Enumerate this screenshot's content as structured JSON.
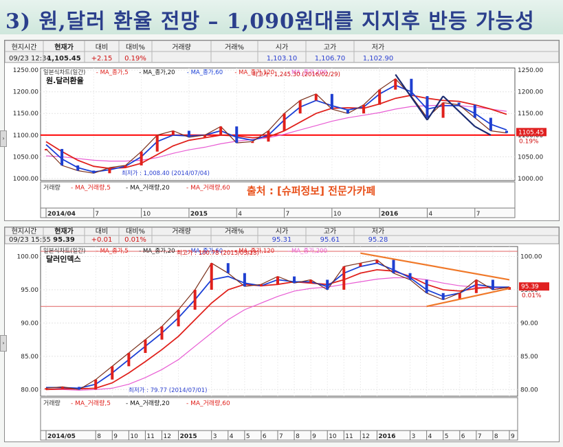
{
  "slide": {
    "title": "3) 원,달러 환율 전망 – 1,090원대를 지지후 반등 가능성"
  },
  "colors": {
    "price_up": "#e0201b",
    "price_down": "#1f3fd0",
    "ma5": "#101010",
    "ma20": "#1a3fd6",
    "ma60": "#e0201b",
    "ma120": "#e85bd3",
    "support_line": "#ff0000",
    "trend_line": "#f07828",
    "header_blue": "#2a3fd0",
    "header_red": "#d01010"
  },
  "chart_data": [
    {
      "type": "line",
      "title": "원.달러환율",
      "legend": [
        "일본식차트(일간)",
        "MA_종가,5",
        "MA_종가,20",
        "MA_종가,60",
        "MA_종가,120",
        "MA_종가,200"
      ],
      "header": {
        "labels": [
          "현지시간",
          "현재가",
          "대비",
          "대비%",
          "거래량",
          "거래%",
          "시가",
          "고가",
          "저가"
        ],
        "values": [
          "09/23 12:34",
          "1,105.45",
          "+2.15",
          "0.19%",
          "",
          "",
          "1,103.10",
          "1,106.70",
          "1,102.90"
        ]
      },
      "y_ticks": [
        "1250.00",
        "1200.00",
        "1150.00",
        "1100.00",
        "1050.00",
        "1000.00"
      ],
      "ylim": [
        995,
        1255
      ],
      "x_ticks": [
        "2014/04",
        "7",
        "10",
        "2015",
        "4",
        "7",
        "10",
        "2016",
        "4",
        "7"
      ],
      "x_dates": [
        "2014-04",
        "2014-07",
        "2014-10",
        "2015-01",
        "2015-04",
        "2015-07",
        "2015-10",
        "2016-01",
        "2016-04",
        "2016-07"
      ],
      "x": [
        "2014-04",
        "2014-05",
        "2014-06",
        "2014-07",
        "2014-08",
        "2014-09",
        "2014-10",
        "2014-11",
        "2014-12",
        "2015-01",
        "2015-02",
        "2015-03",
        "2015-04",
        "2015-05",
        "2015-06",
        "2015-07",
        "2015-08",
        "2015-09",
        "2015-10",
        "2015-11",
        "2015-12",
        "2016-01",
        "2016-02",
        "2016-03",
        "2016-04",
        "2016-05",
        "2016-06",
        "2016-07",
        "2016-08",
        "2016-09"
      ],
      "series": [
        {
          "name": "일본식차트(일간)",
          "values": [
            1068,
            1030,
            1018,
            1012,
            1025,
            1030,
            1062,
            1100,
            1110,
            1095,
            1100,
            1120,
            1082,
            1085,
            1110,
            1150,
            1180,
            1195,
            1160,
            1150,
            1170,
            1205,
            1230,
            1190,
            1140,
            1175,
            1170,
            1140,
            1110,
            1105
          ]
        },
        {
          "name": "MA_종가,20",
          "values": [
            1078,
            1045,
            1025,
            1015,
            1020,
            1028,
            1050,
            1085,
            1100,
            1098,
            1100,
            1110,
            1095,
            1088,
            1100,
            1135,
            1165,
            1180,
            1168,
            1158,
            1165,
            1195,
            1215,
            1200,
            1160,
            1168,
            1168,
            1150,
            1125,
            1112
          ]
        },
        {
          "name": "MA_종가,60",
          "values": [
            1085,
            1062,
            1042,
            1028,
            1023,
            1025,
            1035,
            1055,
            1075,
            1088,
            1094,
            1100,
            1098,
            1094,
            1096,
            1110,
            1130,
            1150,
            1162,
            1163,
            1162,
            1172,
            1185,
            1192,
            1185,
            1180,
            1178,
            1170,
            1160,
            1148
          ]
        },
        {
          "name": "MA_종가,120",
          "values": [
            1052,
            1050,
            1046,
            1042,
            1040,
            1040,
            1042,
            1048,
            1058,
            1066,
            1072,
            1080,
            1086,
            1090,
            1094,
            1102,
            1112,
            1122,
            1132,
            1140,
            1146,
            1152,
            1160,
            1166,
            1168,
            1169,
            1168,
            1165,
            1160,
            1155
          ]
        }
      ],
      "annotations": {
        "high": "최고가 : 1,245.30 (2016/02/29)",
        "low": "최저가 : 1,008.40 (2014/07/04)",
        "last_price": "1105.45",
        "last_pct": "0.19%",
        "source": "출처 : [슈퍼정보] 전문가카페",
        "volume_legend": [
          "거래량",
          "MA_거래량,5",
          "MA_거래량,20",
          "MA_거래량,60"
        ]
      },
      "support_level": 1100,
      "trend_lines": [
        {
          "x": [
            "2016-02",
            "2016-04"
          ],
          "y": [
            1240,
            1135
          ]
        },
        {
          "x": [
            "2016-04",
            "2016-05"
          ],
          "y": [
            1135,
            1190
          ]
        },
        {
          "x": [
            "2016-05",
            "2016-07"
          ],
          "y": [
            1190,
            1120
          ]
        },
        {
          "x": [
            "2016-07",
            "2016-08"
          ],
          "y": [
            1120,
            1100
          ]
        }
      ]
    },
    {
      "type": "line",
      "title": "달러인덱스",
      "legend": [
        "일본식차트(일간)",
        "MA_종가,5",
        "MA_종가,20",
        "MA_종가,60",
        "MA_종가,120",
        "MA_종가,200"
      ],
      "header": {
        "labels": [
          "현지시간",
          "현재가",
          "대비",
          "대비%",
          "거래량",
          "거래%",
          "시가",
          "고가",
          "저가"
        ],
        "values": [
          "09/23 15:55",
          "95.39",
          "+0.01",
          "0.01%",
          "",
          "",
          "95.31",
          "95.61",
          "95.28"
        ]
      },
      "y_ticks": [
        "100.00",
        "95.00",
        "90.00",
        "85.00",
        "80.00"
      ],
      "ylim": [
        79,
        101.5
      ],
      "x_ticks": [
        "2014/05",
        "8",
        "9",
        "10",
        "11",
        "12",
        "2015",
        "3",
        "4",
        "5",
        "6",
        "7",
        "8",
        "9",
        "10",
        "11",
        "12",
        "2016",
        "3",
        "4",
        "5",
        "6",
        "7",
        "8",
        "9"
      ],
      "x_dates": [
        "2014-05",
        "2014-08",
        "2014-09",
        "2014-10",
        "2014-11",
        "2014-12",
        "2015-01",
        "2015-03",
        "2015-04",
        "2015-05",
        "2015-06",
        "2015-07",
        "2015-08",
        "2015-09",
        "2015-10",
        "2015-11",
        "2015-12",
        "2016-01",
        "2016-03",
        "2016-04",
        "2016-05",
        "2016-06",
        "2016-07",
        "2016-08",
        "2016-09"
      ],
      "x": [
        "2014-05",
        "2014-06",
        "2014-07",
        "2014-08",
        "2014-09",
        "2014-10",
        "2014-11",
        "2014-12",
        "2015-01",
        "2015-02",
        "2015-03",
        "2015-04",
        "2015-05",
        "2015-06",
        "2015-07",
        "2015-08",
        "2015-09",
        "2015-10",
        "2015-11",
        "2015-12",
        "2016-01",
        "2016-02",
        "2016-03",
        "2016-04",
        "2016-05",
        "2016-06",
        "2016-07",
        "2016-08",
        "2016-09"
      ],
      "series": [
        {
          "name": "일본식차트(일간)",
          "values": [
            80.2,
            80.4,
            80.0,
            81.5,
            83.5,
            85.5,
            87.5,
            89.5,
            92.0,
            95.0,
            99.0,
            97.5,
            95.5,
            95.8,
            97.0,
            96.0,
            96.5,
            95.0,
            98.5,
            99.0,
            99.5,
            97.5,
            96.5,
            94.5,
            93.5,
            94.5,
            96.5,
            95.0,
            95.4
          ]
        },
        {
          "name": "MA_종가,20",
          "values": [
            80.3,
            80.3,
            80.2,
            80.8,
            82.5,
            84.5,
            86.5,
            88.5,
            90.8,
            93.5,
            96.5,
            97.0,
            96.0,
            95.6,
            96.5,
            96.2,
            96.2,
            95.5,
            97.5,
            98.5,
            99.0,
            98.0,
            96.8,
            95.0,
            94.0,
            94.5,
            95.8,
            95.4,
            95.4
          ]
        },
        {
          "name": "MA_종가,60",
          "values": [
            80.0,
            80.1,
            80.1,
            80.2,
            81.0,
            82.5,
            84.2,
            86.0,
            88.0,
            90.5,
            93.0,
            95.0,
            95.8,
            95.6,
            95.8,
            96.2,
            96.0,
            95.8,
            96.5,
            97.5,
            98.0,
            97.8,
            97.0,
            95.8,
            95.0,
            94.8,
            95.2,
            95.4,
            95.3
          ]
        },
        {
          "name": "MA_종가,120",
          "values": [
            80.0,
            80.0,
            79.9,
            80.0,
            80.2,
            80.8,
            81.8,
            83.0,
            84.5,
            86.5,
            88.5,
            90.5,
            92.0,
            93.0,
            94.0,
            94.8,
            95.2,
            95.4,
            95.8,
            96.2,
            96.6,
            96.8,
            96.8,
            96.5,
            96.0,
            95.6,
            95.4,
            95.3,
            95.3
          ]
        }
      ],
      "annotations": {
        "high": "최고가 : 100.78 (2015/03/13)",
        "low": "최저가 : 79.77 (2014/07/01)",
        "last_price": "95.39",
        "last_pct": "0.01%",
        "volume_legend": [
          "거래량",
          "MA_거래량,5",
          "MA_거래량,20",
          "MA_거래량,60"
        ]
      },
      "horizontal_levels": [
        100.78,
        92.5
      ],
      "trend_lines": [
        {
          "x": [
            "2015-12",
            "2016-09"
          ],
          "y": [
            100.5,
            96.5
          ]
        },
        {
          "x": [
            "2016-04",
            "2016-09"
          ],
          "y": [
            92.5,
            95.2
          ]
        }
      ]
    }
  ]
}
